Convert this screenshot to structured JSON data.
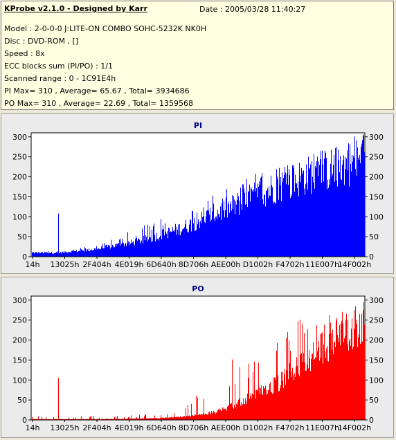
{
  "header": {
    "title": "KProbe v2.1.0 - Designed by Karr",
    "date": "Date : 2005/03/28 11:40:27",
    "lines": [
      "Model : 2-0-0-0 J:LITE-ON COMBO SOHC-5232K NK0H",
      "Disc : DVD-ROM ,  []",
      "Speed : 8x",
      "ECC blocks sum (PI/PO) : 1/1",
      "Scanned range : 0 - 1C91E4h",
      "PI Max= 310 , Average= 65.67 , Total= 3934686",
      "PO Max= 310 , Average= 22.69 , Total= 1359568"
    ]
  },
  "colors": {
    "pi": "#0000ff",
    "po": "#ff0000",
    "plot_bg": "#ffffff",
    "title": "#00007f"
  },
  "chart_data": [
    {
      "type": "area",
      "title": "PI",
      "xlabel": "",
      "ylabel": "",
      "x_tick_labels": [
        "14h",
        "13025h",
        "2F404h",
        "4E019h",
        "6D640h",
        "8D706h",
        "AEE00h",
        "D1002h",
        "F4702h",
        "11E007h",
        "14F002h"
      ],
      "y_ticks": [
        0,
        50,
        100,
        150,
        200,
        250,
        300
      ],
      "ylim": [
        0,
        310
      ],
      "grid": false,
      "series": [
        {
          "color": "#0000ff",
          "x_fraction": [
            0.0,
            0.05,
            0.075,
            0.08,
            0.085,
            0.1,
            0.15,
            0.2,
            0.25,
            0.3,
            0.35,
            0.4,
            0.45,
            0.5,
            0.55,
            0.6,
            0.65,
            0.7,
            0.75,
            0.8,
            0.85,
            0.9,
            0.95,
            1.0
          ],
          "base": [
            10,
            10,
            10,
            10,
            10,
            12,
            15,
            20,
            28,
            35,
            45,
            58,
            72,
            90,
            108,
            125,
            145,
            165,
            180,
            195,
            210,
            220,
            232,
            245
          ],
          "peaks": [
            20,
            15,
            15,
            108,
            15,
            18,
            25,
            35,
            50,
            65,
            85,
            100,
            130,
            135,
            160,
            175,
            200,
            220,
            240,
            250,
            265,
            275,
            300,
            310
          ]
        }
      ]
    },
    {
      "type": "area",
      "title": "PO",
      "xlabel": "",
      "ylabel": "",
      "x_tick_labels": [
        "14h",
        "13025h",
        "2F404h",
        "4E019h",
        "6D640h",
        "8D706h",
        "AEE00h",
        "D1002h",
        "F4702h",
        "11E007h",
        "14F002h"
      ],
      "y_ticks": [
        0,
        50,
        100,
        150,
        200,
        250,
        300
      ],
      "ylim": [
        0,
        310
      ],
      "grid": false,
      "series": [
        {
          "color": "#ff0000",
          "x_fraction": [
            0.0,
            0.05,
            0.075,
            0.08,
            0.085,
            0.1,
            0.2,
            0.3,
            0.4,
            0.45,
            0.5,
            0.55,
            0.6,
            0.65,
            0.7,
            0.75,
            0.8,
            0.85,
            0.9,
            0.95,
            1.0
          ],
          "base": [
            2,
            2,
            2,
            2,
            2,
            2,
            2,
            3,
            5,
            8,
            12,
            20,
            35,
            55,
            75,
            100,
            130,
            165,
            200,
            230,
            250
          ],
          "peaks": [
            10,
            8,
            8,
            105,
            8,
            8,
            10,
            12,
            20,
            30,
            70,
            120,
            160,
            175,
            190,
            220,
            250,
            270,
            275,
            280,
            310
          ]
        }
      ]
    }
  ]
}
